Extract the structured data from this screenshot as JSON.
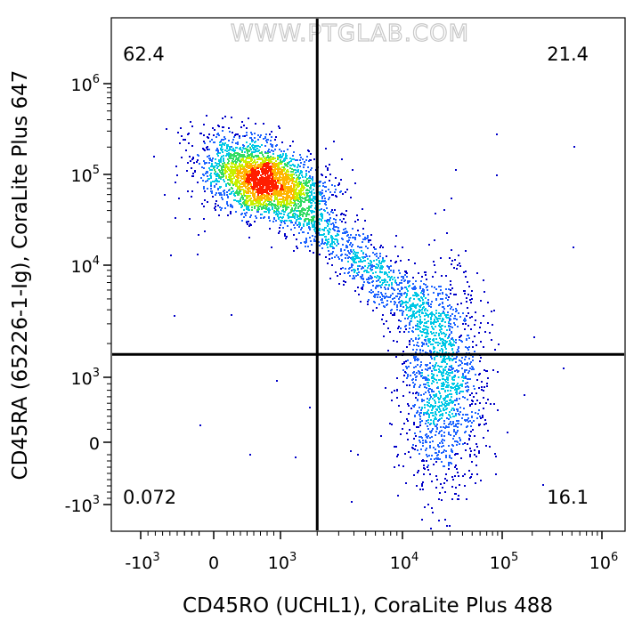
{
  "watermark": "WWW.PTGLAB.COM",
  "chart_data": {
    "type": "scatter",
    "subtype": "flow-cytometry-density-dot-plot",
    "xlabel": "CD45RO (UCHL1), CoraLite Plus 488",
    "ylabel": "CD45RA (65226-1-Ig), CoraLite Plus 647",
    "x_scale": "biexponential",
    "y_scale": "biexponential",
    "x_ticks": [
      {
        "value": -1000,
        "base": "-10",
        "exp": "3"
      },
      {
        "value": 0,
        "base": "0",
        "exp": ""
      },
      {
        "value": 1000,
        "base": "10",
        "exp": "3"
      },
      {
        "value": 10000,
        "base": "10",
        "exp": "4"
      },
      {
        "value": 100000,
        "base": "10",
        "exp": "5"
      },
      {
        "value": 1000000,
        "base": "10",
        "exp": "6"
      }
    ],
    "y_ticks": [
      {
        "value": -1000,
        "base": "-10",
        "exp": "3"
      },
      {
        "value": 0,
        "base": "0",
        "exp": ""
      },
      {
        "value": 1000,
        "base": "10",
        "exp": "3"
      },
      {
        "value": 10000,
        "base": "10",
        "exp": "4"
      },
      {
        "value": 100000,
        "base": "10",
        "exp": "5"
      },
      {
        "value": 1000000,
        "base": "10",
        "exp": "6"
      }
    ],
    "quadrant_gate": {
      "x": 2000,
      "y": 1600
    },
    "quadrants": [
      {
        "position": "top-left",
        "label": "62.4"
      },
      {
        "position": "top-right",
        "label": "21.4"
      },
      {
        "position": "bottom-left",
        "label": "0.072"
      },
      {
        "position": "bottom-right",
        "label": "16.1"
      }
    ],
    "populations": [
      {
        "name_hidden": true,
        "center_x": 700,
        "center_y": 90000,
        "count": 2600
      },
      {
        "name_hidden": true,
        "center_x": 25000,
        "center_y": 900,
        "count": 1300
      },
      {
        "name_hidden": true,
        "center_x": 5000,
        "center_y": 10000,
        "count": 1100
      }
    ],
    "density_colors": [
      "#0000c8",
      "#1e64ff",
      "#00c8e6",
      "#32dc64",
      "#c8f000",
      "#ffb400",
      "#ff1e00"
    ]
  }
}
